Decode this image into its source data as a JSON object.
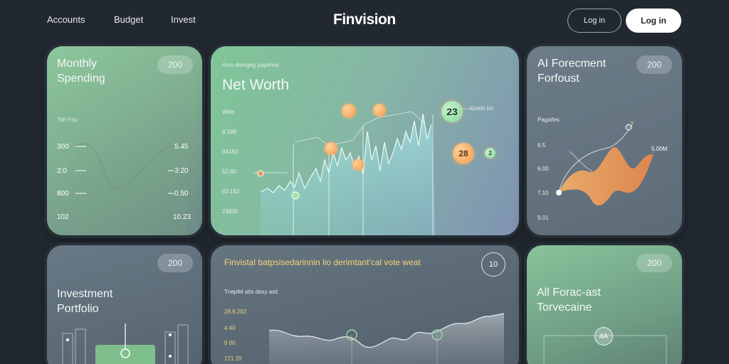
{
  "nav": {
    "links": [
      "Accounts",
      "Budget",
      "Invest"
    ],
    "brand": "Finvision",
    "login_outline": "Log in",
    "login_solid": "Log in"
  },
  "monthly": {
    "title_line1": "Monthly",
    "title_line2": "Spending",
    "badge": "200",
    "subtitle": "7bh Fou",
    "left_labels": [
      "300",
      "2:0",
      "800",
      "102"
    ],
    "right_labels": [
      "5.45",
      "3:20",
      "0.50",
      "10.23"
    ]
  },
  "networth": {
    "kicker": "Arvs dnmgeg papehes",
    "title": "Net Worth",
    "axis_caption": "Wels",
    "y_labels": [
      "8 188",
      "94183",
      "52.80",
      "63 162",
      "23830"
    ],
    "annotation": "Comh lnc",
    "badge_value": "23",
    "bubble_value": "28",
    "small_marker": "2"
  },
  "forecast": {
    "title_line1": "AI Forecment",
    "title_line2": "Forfoust",
    "badge": "200",
    "caption": "Pagsifes",
    "y_labels": [
      "6.5",
      "6.00",
      "7.10",
      "9.01"
    ],
    "value_label": "5.00M",
    "marker": "7"
  },
  "portfolio": {
    "title_line1": "Investment",
    "title_line2": "Portfolio",
    "badge": "200"
  },
  "insights": {
    "title": "Finvistal batpsisedarinnin lio derimtant'cal vote weat",
    "subtitle": "Tnepfel atis dexy asit",
    "y_labels": [
      "28.8.202",
      "4 40",
      "6 00",
      "171 20"
    ],
    "ring_value": "10"
  },
  "allforecast": {
    "title_line1": "All Forac-ast",
    "title_line2": "Torvecaine",
    "badge": "200",
    "ring_value": "4A"
  },
  "colors": {
    "accent_green": "#84d59b",
    "accent_orange": "#f09a4a",
    "background": "#222830"
  }
}
